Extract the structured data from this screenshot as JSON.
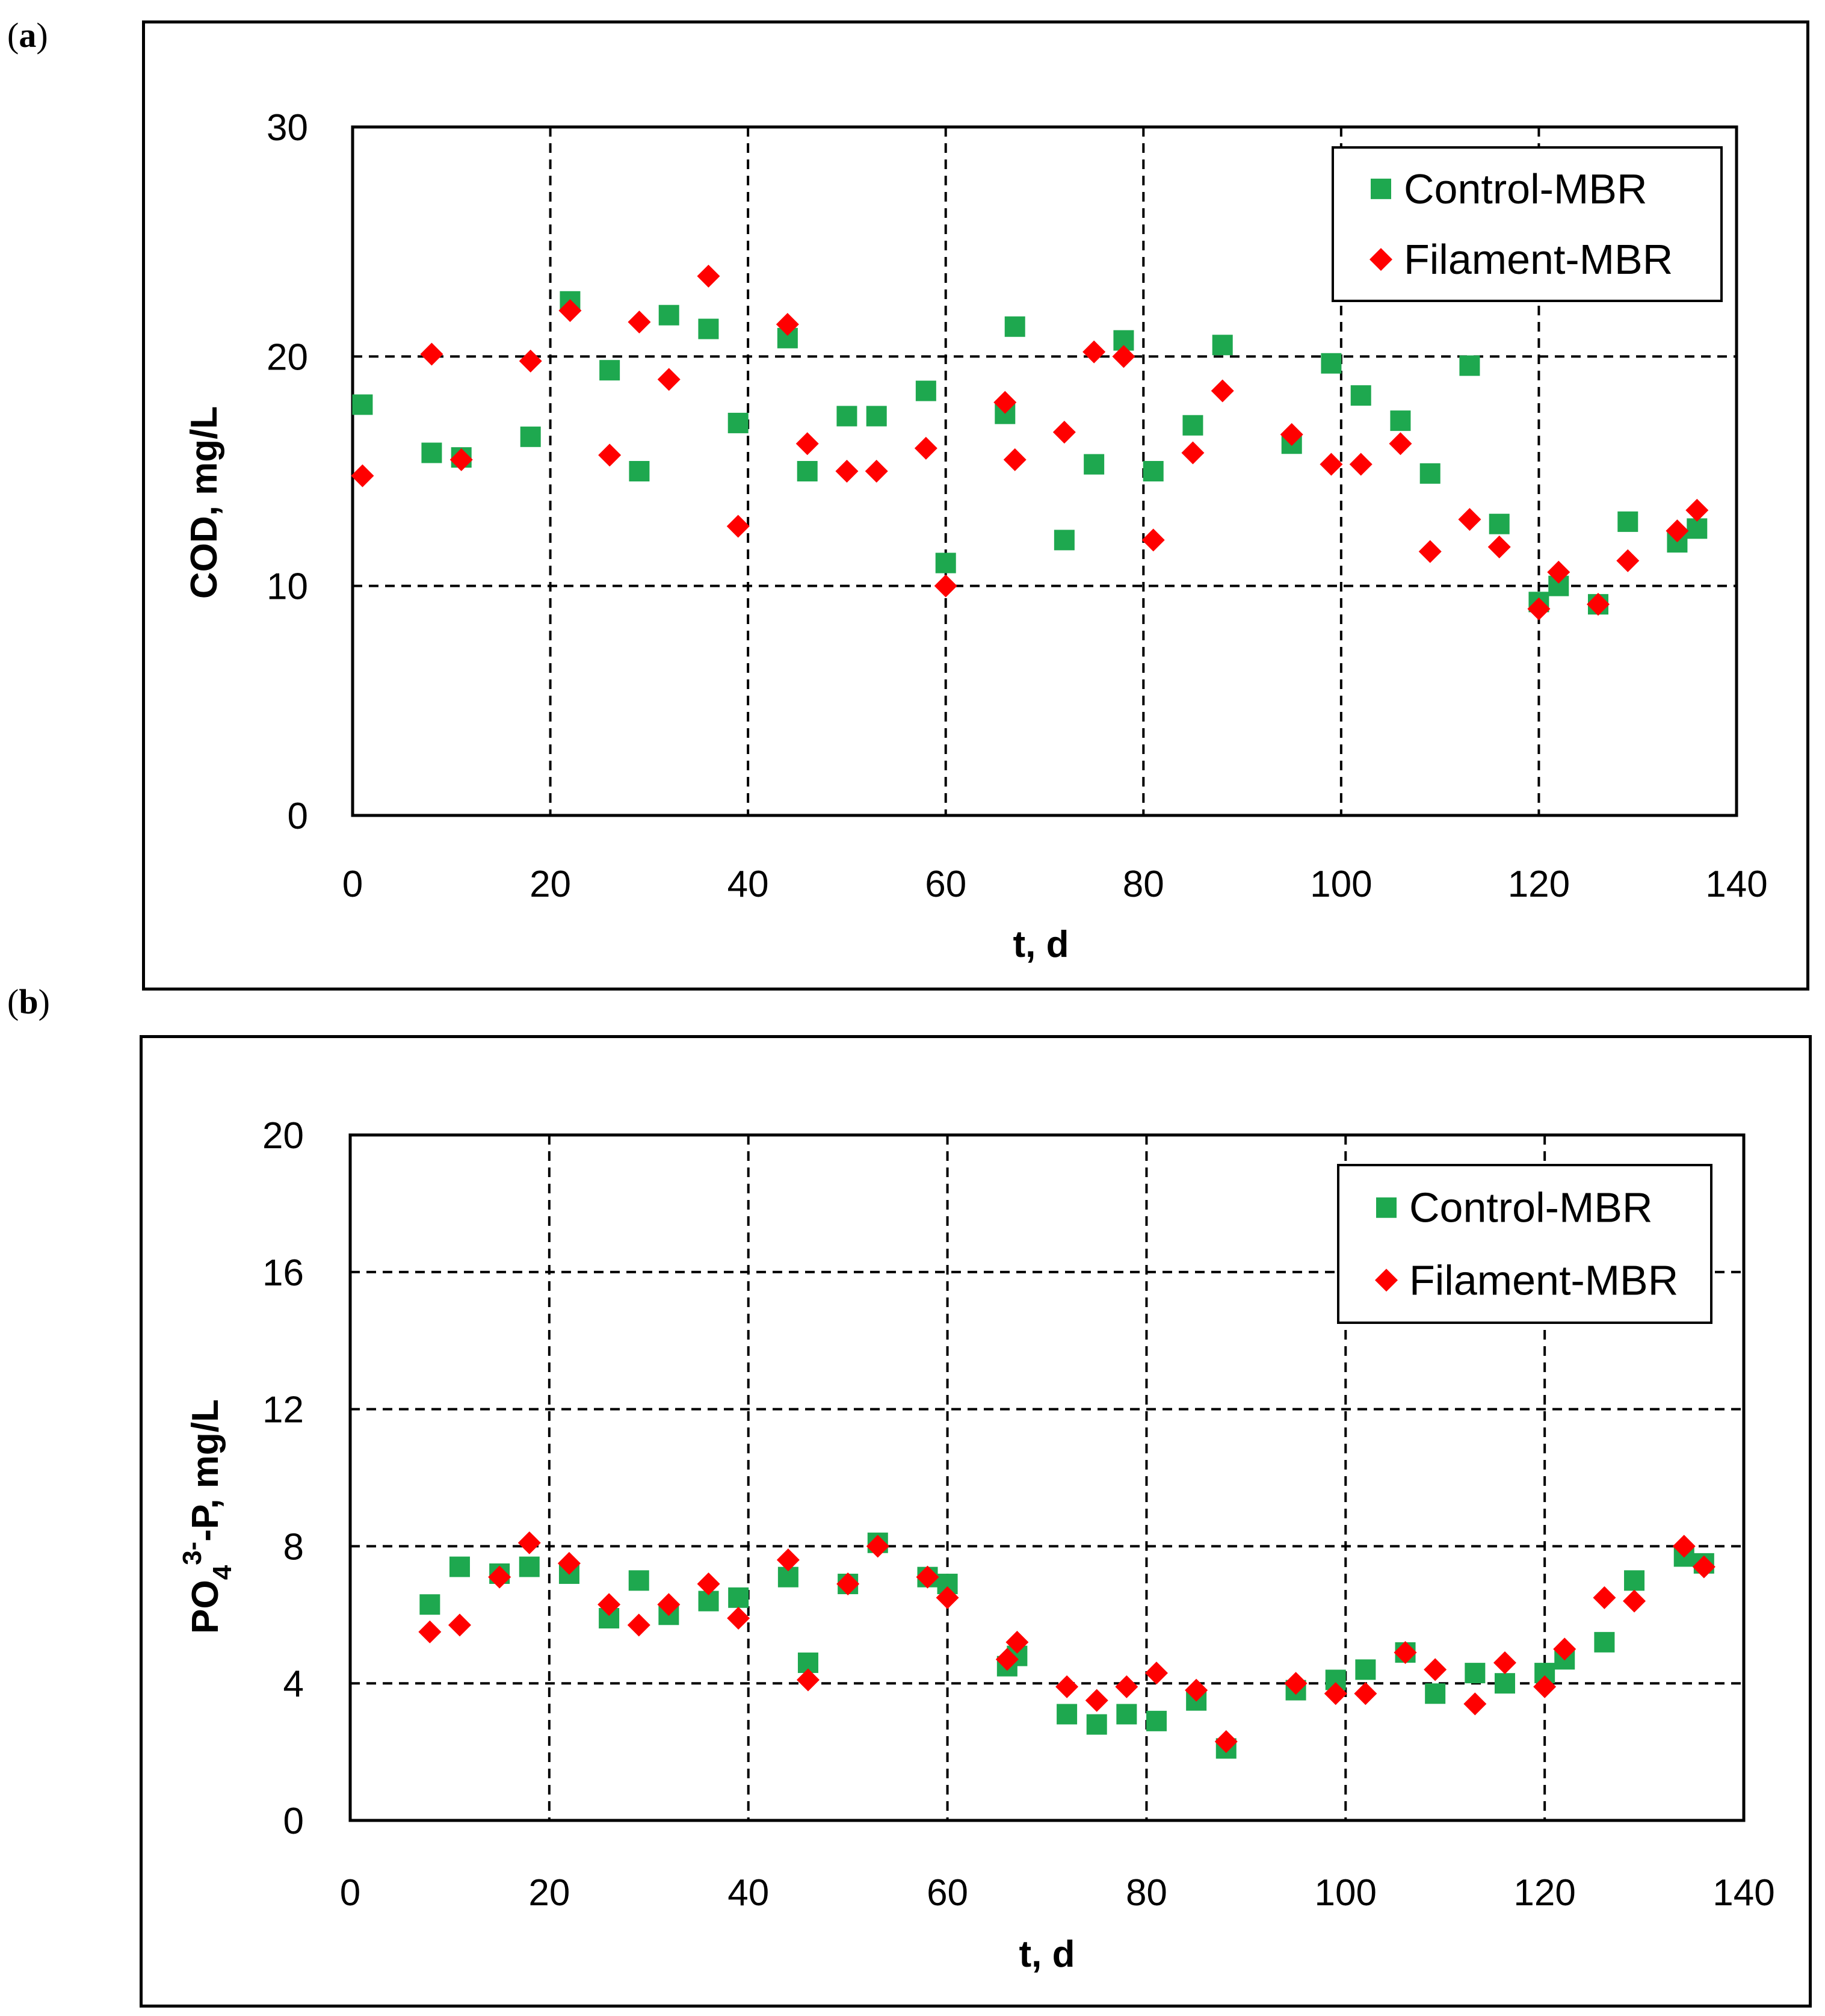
{
  "panels": [
    {
      "label_open": "(",
      "label_letter": "a",
      "label_close": ")"
    },
    {
      "label_open": "(",
      "label_letter": "b",
      "label_close": ")"
    }
  ],
  "colors": {
    "control": "#1ea84f",
    "filament": "#ff0000",
    "grid": "#000000"
  },
  "chart_data": [
    {
      "type": "scatter",
      "title": "",
      "xlabel": "t, d",
      "ylabel": "COD, mg/L",
      "xlim": [
        0,
        140
      ],
      "ylim": [
        0,
        30
      ],
      "xticks": [
        0,
        20,
        40,
        60,
        80,
        100,
        120,
        140
      ],
      "yticks": [
        0,
        10,
        20,
        30
      ],
      "grid": true,
      "legend_position": "top-right",
      "series": [
        {
          "name": "Control-MBR",
          "marker": "square",
          "x": [
            1,
            8,
            11,
            18,
            22,
            26,
            29,
            32,
            36,
            39,
            44,
            46,
            50,
            53,
            58,
            60,
            66,
            67,
            72,
            75,
            78,
            81,
            85,
            88,
            95,
            99,
            102,
            106,
            109,
            113,
            116,
            120,
            122,
            126,
            129,
            134,
            136
          ],
          "y": [
            17.9,
            15.8,
            15.6,
            16.5,
            22.4,
            19.4,
            15.0,
            21.8,
            21.2,
            17.1,
            20.8,
            15.0,
            17.4,
            17.4,
            18.5,
            11.0,
            17.5,
            21.3,
            12.0,
            15.3,
            20.7,
            15.0,
            17.0,
            20.5,
            16.2,
            19.7,
            18.3,
            17.2,
            14.9,
            19.6,
            12.7,
            9.3,
            10.0,
            9.2,
            12.8,
            11.9,
            12.5
          ]
        },
        {
          "name": "Filament-MBR",
          "marker": "diamond",
          "x": [
            1,
            8,
            11,
            18,
            22,
            26,
            29,
            32,
            36,
            39,
            44,
            46,
            50,
            53,
            58,
            60,
            66,
            67,
            72,
            75,
            78,
            81,
            85,
            88,
            95,
            99,
            102,
            106,
            109,
            113,
            116,
            120,
            122,
            126,
            129,
            134,
            136
          ],
          "y": [
            14.8,
            20.1,
            15.5,
            19.8,
            22.0,
            15.7,
            21.5,
            19.0,
            23.5,
            12.6,
            21.4,
            16.2,
            15.0,
            15.0,
            16.0,
            10.0,
            18.0,
            15.5,
            16.7,
            20.2,
            20.0,
            12.0,
            15.8,
            18.5,
            16.6,
            15.3,
            15.3,
            16.2,
            11.5,
            12.9,
            11.7,
            9.0,
            10.6,
            9.2,
            11.1,
            12.4,
            13.3
          ]
        }
      ]
    },
    {
      "type": "scatter",
      "title": "",
      "xlabel": "t, d",
      "ylabel_main": "PO",
      "ylabel_sub": "4",
      "ylabel_sup": "3-",
      "ylabel_rest": "-P, mg/L",
      "xlim": [
        0,
        140
      ],
      "ylim": [
        0,
        20
      ],
      "xticks": [
        0,
        20,
        40,
        60,
        80,
        100,
        120,
        140
      ],
      "yticks": [
        0,
        4,
        8,
        12,
        16,
        20
      ],
      "grid": true,
      "legend_position": "top-right",
      "series": [
        {
          "name": "Control-MBR",
          "marker": "square",
          "x": [
            8,
            11,
            15,
            18,
            22,
            26,
            29,
            32,
            36,
            39,
            44,
            46,
            50,
            53,
            58,
            60,
            66,
            67,
            72,
            75,
            78,
            81,
            85,
            88,
            95,
            99,
            102,
            106,
            109,
            113,
            116,
            120,
            122,
            126,
            129,
            134,
            136
          ],
          "y": [
            6.3,
            7.4,
            7.2,
            7.4,
            7.2,
            5.9,
            7.0,
            6.0,
            6.4,
            6.5,
            7.1,
            4.6,
            6.9,
            8.1,
            7.1,
            6.9,
            4.5,
            4.8,
            3.1,
            2.8,
            3.1,
            2.9,
            3.5,
            2.1,
            3.8,
            4.1,
            4.4,
            4.9,
            3.7,
            4.3,
            4.0,
            4.3,
            4.7,
            5.2,
            7.0,
            7.7,
            7.5
          ]
        },
        {
          "name": "Filament-MBR",
          "marker": "diamond",
          "x": [
            8,
            11,
            15,
            18,
            22,
            26,
            29,
            32,
            36,
            39,
            44,
            46,
            50,
            53,
            58,
            60,
            66,
            67,
            72,
            75,
            78,
            81,
            85,
            88,
            95,
            99,
            102,
            106,
            109,
            113,
            116,
            120,
            122,
            126,
            129,
            134,
            136
          ],
          "y": [
            5.5,
            5.7,
            7.1,
            8.1,
            7.5,
            6.3,
            5.7,
            6.3,
            6.9,
            5.9,
            7.6,
            4.1,
            6.9,
            8.0,
            7.1,
            6.5,
            4.7,
            5.2,
            3.9,
            3.5,
            3.9,
            4.3,
            3.8,
            2.3,
            4.0,
            3.7,
            3.7,
            4.9,
            4.4,
            3.4,
            4.6,
            3.9,
            5.0,
            6.5,
            6.4,
            8.0,
            7.4
          ]
        }
      ]
    }
  ]
}
